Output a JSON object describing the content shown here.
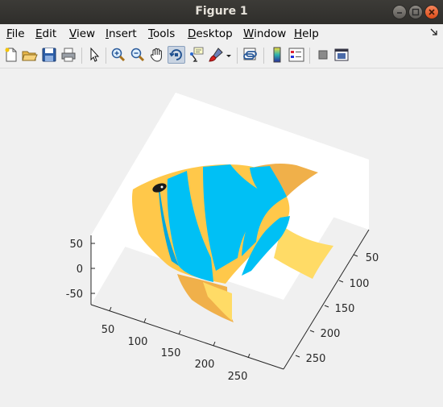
{
  "window": {
    "title": "Figure 1"
  },
  "menus": [
    "File",
    "Edit",
    "View",
    "Insert",
    "Tools",
    "Desktop",
    "Window",
    "Help"
  ],
  "menu_mnemonics": [
    "F",
    "E",
    "V",
    "I",
    "T",
    "D",
    "W",
    "H"
  ],
  "toolbar": {
    "buttons": [
      "new-figure",
      "open-file",
      "save",
      "print",
      "edit-plot",
      "zoom-in",
      "zoom-out",
      "pan",
      "rotate-3d",
      "data-cursor",
      "brush",
      "brush-menu",
      "link-plot",
      "insert-colorbar",
      "insert-legend",
      "hide-plot-tools",
      "show-plot-tools"
    ],
    "active": "rotate-3d"
  },
  "axes": {
    "z_ticks": [
      "50",
      "0",
      "-50"
    ],
    "x_ticks": [
      "50",
      "100",
      "150",
      "200",
      "250"
    ],
    "y_ticks": [
      "50",
      "100",
      "150",
      "200",
      "250"
    ]
  },
  "colors": {
    "titlebar": "#3c3b37",
    "fish_yellow": "#ffc84a",
    "fish_stripe_blue": "#00c0f5",
    "fish_fin_orange": "#f0b04a",
    "axes_background": "#ffffff",
    "figure_background": "#f0f0f0"
  }
}
